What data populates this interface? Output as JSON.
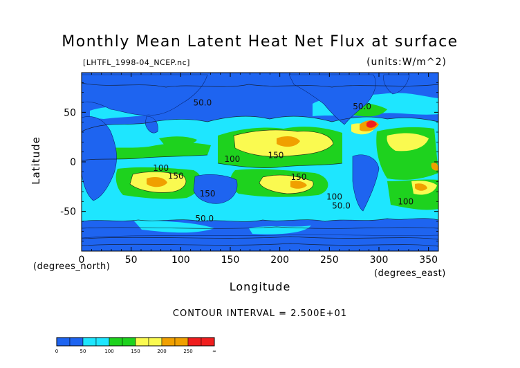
{
  "chart_data": {
    "type": "heatmap",
    "title": "Monthly Mean Latent Heat Net Flux at surface",
    "source_label": "[LHTFL_1998-04_NCEP.nc]",
    "units_label": "(units:W/m^2)",
    "xlabel": "Longitude",
    "ylabel": "Latitude",
    "x_units_label": "(degrees_east)",
    "y_units_label": "(degrees_north)",
    "xlim": [
      0,
      360
    ],
    "ylim": [
      -90,
      90
    ],
    "x_ticks": [
      0,
      50,
      100,
      150,
      200,
      250,
      300,
      350
    ],
    "y_ticks": [
      -50,
      0,
      50
    ],
    "contour_interval_label": "CONTOUR INTERVAL = 2.500E+01",
    "contour_labels": [
      {
        "text": "50.0",
        "lon": 122,
        "lat": 57
      },
      {
        "text": "100",
        "lon": 80,
        "lat": -9
      },
      {
        "text": "150",
        "lon": 95,
        "lat": -17
      },
      {
        "text": "100",
        "lon": 152,
        "lat": 0
      },
      {
        "text": "150",
        "lon": 196,
        "lat": 4
      },
      {
        "text": "150",
        "lon": 219,
        "lat": -18
      },
      {
        "text": "150",
        "lon": 127,
        "lat": -35
      },
      {
        "text": "50.0",
        "lon": 124,
        "lat": -60
      },
      {
        "text": "100",
        "lon": 255,
        "lat": -38
      },
      {
        "text": "50.0",
        "lon": 262,
        "lat": -47
      },
      {
        "text": "100",
        "lon": 327,
        "lat": -43
      },
      {
        "text": "50.0",
        "lon": 283,
        "lat": 53
      }
    ],
    "colorbar": {
      "bins": [
        {
          "from": "0",
          "to": "25",
          "color": "#1e64f0"
        },
        {
          "from": "25",
          "to": "50",
          "color": "#1e64f0"
        },
        {
          "from": "50",
          "to": "75",
          "color": "#1ee6ff"
        },
        {
          "from": "75",
          "to": "100",
          "color": "#1ee6ff"
        },
        {
          "from": "100",
          "to": "125",
          "color": "#1ed21e"
        },
        {
          "from": "125",
          "to": "150",
          "color": "#1ed21e"
        },
        {
          "from": "150",
          "to": "175",
          "color": "#fafa50"
        },
        {
          "from": "175",
          "to": "200",
          "color": "#fafa50"
        },
        {
          "from": "200",
          "to": "225",
          "color": "#f0a000"
        },
        {
          "from": "225",
          "to": "250",
          "color": "#f0a000"
        },
        {
          "from": "250",
          "to": "275",
          "color": "#f01e1e"
        },
        {
          "from": "275",
          "to": "∞",
          "color": "#f01e1e"
        }
      ],
      "tick_labels": [
        "0",
        "50",
        "100",
        "150",
        "200",
        "250",
        "∞"
      ]
    },
    "colors": {
      "deep_blue": "#1e64f0",
      "cyan": "#1ee6ff",
      "green": "#1ed21e",
      "yellow": "#fafa50",
      "orange": "#f0a000",
      "red": "#f01e1e"
    }
  }
}
